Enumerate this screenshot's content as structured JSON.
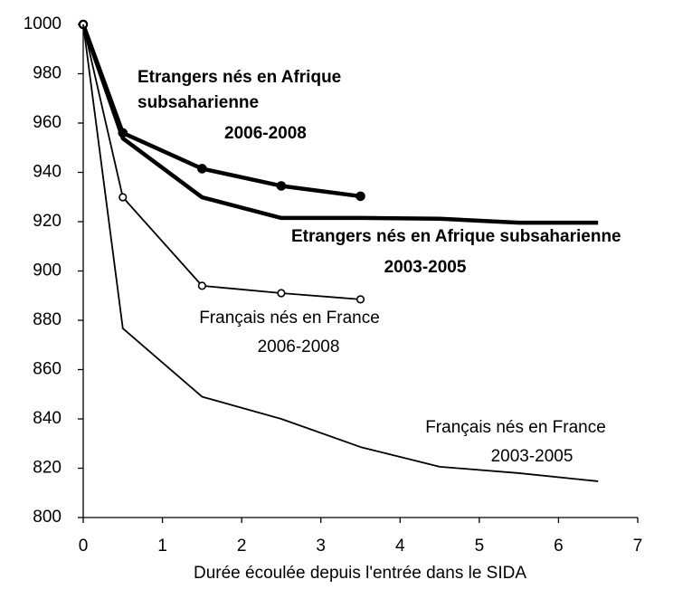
{
  "chart_data": {
    "type": "line",
    "xlabel": "Durée écoulée depuis l'entrée dans le SIDA",
    "xlim": [
      0,
      7
    ],
    "xticks": [
      0,
      1,
      2,
      3,
      4,
      5,
      6,
      7
    ],
    "ylim": [
      800,
      1000
    ],
    "yticks": [
      800,
      820,
      840,
      860,
      880,
      900,
      920,
      940,
      960,
      980,
      1000
    ],
    "grid": false,
    "series": [
      {
        "color": "#000000",
        "bold": true,
        "marker": "filled",
        "x": [
          0,
          0.5,
          1.5,
          2.5,
          3.5
        ],
        "values": [
          1000,
          956,
          941.5,
          934.5,
          930.3
        ]
      },
      {
        "color": "#000000",
        "bold": true,
        "marker": "none",
        "x": [
          0,
          0.5,
          1.5,
          2.5,
          3.5,
          4.5,
          5.5,
          6.5
        ],
        "values": [
          1000,
          953.8,
          929.9,
          921.5,
          921.5,
          921.2,
          919.6,
          919.6
        ]
      },
      {
        "color": "#000000",
        "bold": false,
        "marker": "open",
        "x": [
          0,
          0.5,
          1.5,
          2.5,
          3.5
        ],
        "values": [
          1000,
          929.9,
          894,
          891,
          888.5
        ]
      },
      {
        "color": "#000000",
        "bold": false,
        "marker": "none",
        "x": [
          0,
          0.5,
          1.5,
          2.5,
          3.5,
          4.5,
          5.5,
          6.5
        ],
        "values": [
          1000,
          876.7,
          849,
          840,
          828.6,
          820.6,
          818,
          814.7
        ]
      }
    ],
    "annotations": [
      {
        "bold": true,
        "lines": [
          "Etrangers nés en Afrique",
          "subsaharienne",
          "2006-2008"
        ]
      },
      {
        "bold": true,
        "lines": [
          "Etrangers nés en Afrique subsaharienne",
          "2003-2005"
        ]
      },
      {
        "bold": false,
        "lines": [
          "Français nés en France",
          "2006-2008"
        ]
      },
      {
        "bold": false,
        "lines": [
          "Français nés en France",
          "2003-2005"
        ]
      }
    ]
  }
}
